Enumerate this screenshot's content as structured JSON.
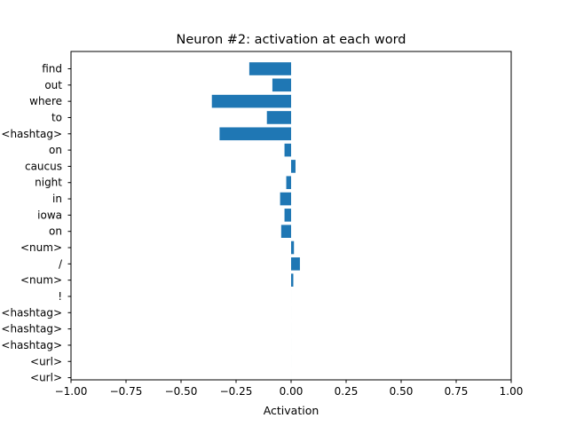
{
  "chart_data": {
    "type": "bar",
    "orientation": "horizontal",
    "title": "Neuron #2: activation at each word",
    "xlabel": "Activation",
    "ylabel": "",
    "xlim": [
      -1.0,
      1.0
    ],
    "xticks": [
      -1.0,
      -0.75,
      -0.5,
      -0.25,
      0.0,
      0.25,
      0.5,
      0.75,
      1.0
    ],
    "xtick_labels": [
      "−1.00",
      "−0.75",
      "−0.50",
      "−0.25",
      "0.00",
      "0.25",
      "0.50",
      "0.75",
      "1.00"
    ],
    "grid": false,
    "bar_color": "#1f77b4",
    "categories": [
      "find",
      "out",
      "where",
      "to",
      "<hashtag>",
      "on",
      "caucus",
      "night",
      "in",
      "iowa",
      "on",
      "<num>",
      "/",
      "<num>",
      "!",
      "<hashtag>",
      "<hashtag>",
      "<hashtag>",
      "<url>",
      "<url>"
    ],
    "values": [
      -0.19,
      -0.085,
      -0.36,
      -0.11,
      -0.325,
      -0.03,
      0.02,
      -0.022,
      -0.05,
      -0.03,
      -0.045,
      0.013,
      0.04,
      0.01,
      0,
      0,
      0,
      0,
      0,
      0
    ]
  }
}
